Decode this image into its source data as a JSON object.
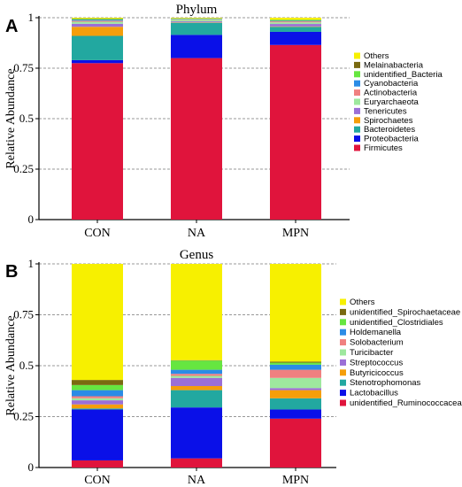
{
  "chart_data": [
    {
      "type": "bar",
      "stacked": true,
      "panel_label": "A",
      "title": "Phylum",
      "ylabel": "Relative Abundance",
      "ylim": [
        0,
        1
      ],
      "yticks": [
        0,
        0.25,
        0.5,
        0.75,
        1
      ],
      "ytick_labels": [
        "0",
        "0.25",
        "0.5",
        "0.75",
        "1"
      ],
      "grid": "dashed horizontal",
      "legend_position": "right",
      "categories": [
        "CON",
        "NA",
        "MPN"
      ],
      "series": [
        {
          "name": "Firmicutes",
          "color": "#E0143C",
          "values": [
            0.775,
            0.8,
            0.865
          ]
        },
        {
          "name": "Proteobacteria",
          "color": "#0A10E8",
          "values": [
            0.015,
            0.115,
            0.065
          ]
        },
        {
          "name": "Bacteroidetes",
          "color": "#22A8A0",
          "values": [
            0.12,
            0.06,
            0.025
          ]
        },
        {
          "name": "Spirochaetes",
          "color": "#F59E0A",
          "values": [
            0.045,
            0.002,
            0.002
          ]
        },
        {
          "name": "Tenericutes",
          "color": "#9B6FD6",
          "values": [
            0.015,
            0.005,
            0.012
          ]
        },
        {
          "name": "Euryarchaeota",
          "color": "#9EE89E",
          "values": [
            0.01,
            0.008,
            0.008
          ]
        },
        {
          "name": "Actinobacteria",
          "color": "#F08080",
          "values": [
            0.005,
            0.002,
            0.005
          ]
        },
        {
          "name": "Cyanobacteria",
          "color": "#2B8CE6",
          "values": [
            0.005,
            0.002,
            0.003
          ]
        },
        {
          "name": "unidentified_Bacteria",
          "color": "#66E640",
          "values": [
            0.004,
            0.002,
            0.004
          ]
        },
        {
          "name": "Melainabacteria",
          "color": "#7A6A10",
          "values": [
            0.002,
            0.001,
            0.001
          ]
        },
        {
          "name": "Others",
          "color": "#F7F000",
          "values": [
            0.004,
            0.003,
            0.01
          ]
        }
      ]
    },
    {
      "type": "bar",
      "stacked": true,
      "panel_label": "B",
      "title": "Genus",
      "ylabel": "Relative Abundance",
      "ylim": [
        0,
        1
      ],
      "yticks": [
        0,
        0.25,
        0.5,
        0.75,
        1
      ],
      "ytick_labels": [
        "0",
        "0.25",
        "0.5",
        "0.75",
        "1"
      ],
      "grid": "dashed horizontal",
      "legend_position": "right",
      "categories": [
        "CON",
        "NA",
        "MPN"
      ],
      "series": [
        {
          "name": "unidentified_Ruminococcaceae",
          "color": "#E0143C",
          "values": [
            0.035,
            0.045,
            0.24
          ]
        },
        {
          "name": "Lactobacillus",
          "color": "#0A10E8",
          "values": [
            0.25,
            0.25,
            0.045
          ]
        },
        {
          "name": "Stenotrophomonas",
          "color": "#22A8A0",
          "values": [
            0.005,
            0.085,
            0.055
          ]
        },
        {
          "name": "Butyricicoccus",
          "color": "#F59E0A",
          "values": [
            0.02,
            0.02,
            0.04
          ]
        },
        {
          "name": "Streptococcus",
          "color": "#9B6FD6",
          "values": [
            0.02,
            0.04,
            0.01
          ]
        },
        {
          "name": "Turicibacter",
          "color": "#9EE89E",
          "values": [
            0.01,
            0.01,
            0.05
          ]
        },
        {
          "name": "Solobacterium",
          "color": "#F08080",
          "values": [
            0.01,
            0.01,
            0.04
          ]
        },
        {
          "name": "Holdemanella",
          "color": "#2B8CE6",
          "values": [
            0.03,
            0.02,
            0.025
          ]
        },
        {
          "name": "unidentified_Clostridiales",
          "color": "#66E640",
          "values": [
            0.025,
            0.045,
            0.01
          ]
        },
        {
          "name": "unidentified_Spirochaetaceae",
          "color": "#7A6A10",
          "values": [
            0.025,
            0.002,
            0.005
          ]
        },
        {
          "name": "Others",
          "color": "#F7F000",
          "values": [
            0.57,
            0.473,
            0.48
          ]
        }
      ]
    }
  ]
}
